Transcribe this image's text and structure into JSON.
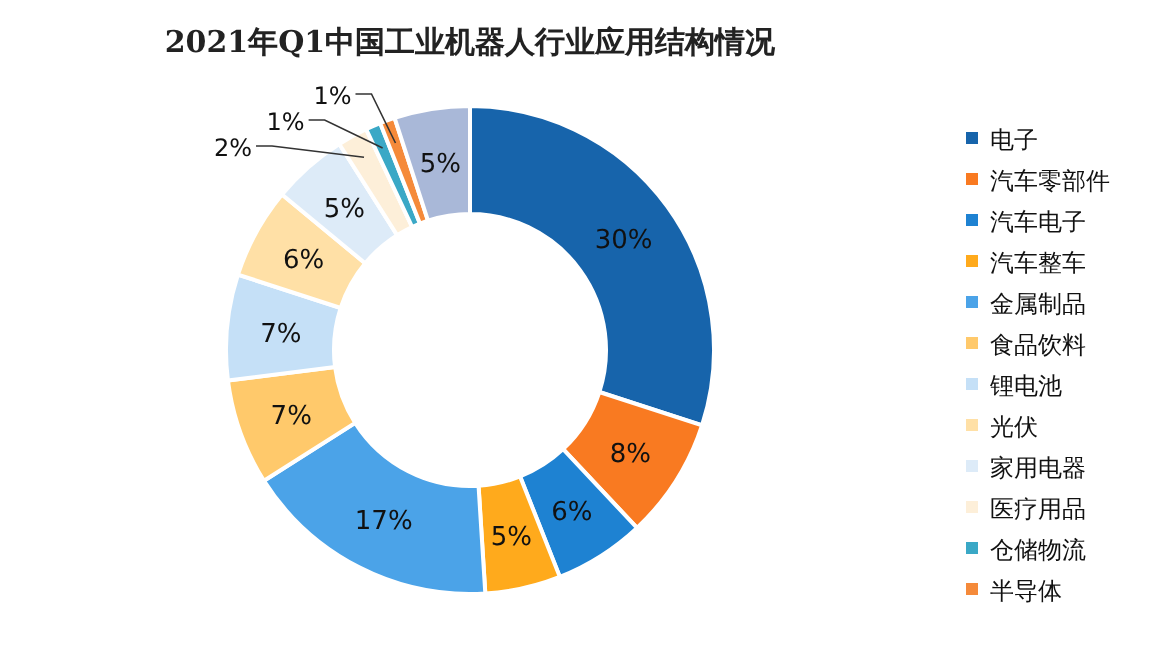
{
  "chart_data": {
    "type": "donut",
    "title": "2021年Q1中国工业机器人行业应用结构情况",
    "categories": [
      "电子",
      "汽车零部件",
      "汽车电子",
      "汽车整车",
      "金属制品",
      "食品饮料",
      "锂电池",
      "光伏",
      "家用电器",
      "医疗用品",
      "仓储物流",
      "半导体",
      null
    ],
    "values": [
      30,
      8,
      6,
      5,
      17,
      7,
      7,
      6,
      5,
      2,
      1,
      1,
      5
    ],
    "colors": [
      "#1764ab",
      "#f97a21",
      "#1e82d2",
      "#ffaa1c",
      "#4ba3e8",
      "#ffc96b",
      "#c5e0f7",
      "#ffe0a6",
      "#ddebf8",
      "#fdefd9",
      "#3aa8c6",
      "#f58a3a",
      "#a9b8d8"
    ],
    "value_labels": [
      "30%",
      "8%",
      "6%",
      "5%",
      "17%",
      "7%",
      "7%",
      "6%",
      "5%",
      "2%",
      "1%",
      "1%",
      "5%"
    ],
    "legend": "right"
  }
}
